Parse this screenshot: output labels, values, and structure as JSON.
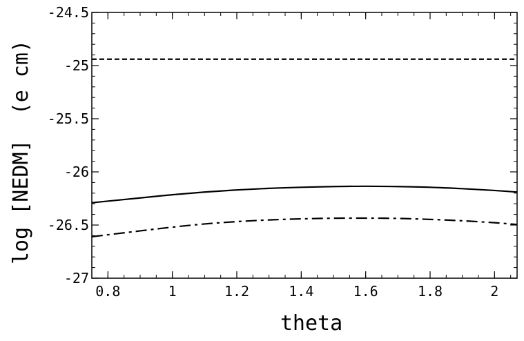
{
  "chart_data": {
    "type": "line",
    "xlabel": "theta",
    "ylabel": "log [NEDM]  (e cm)",
    "xlim": [
      0.75,
      2.07
    ],
    "ylim": [
      -27,
      -24.5
    ],
    "x_ticks": [
      0.8,
      1,
      1.2,
      1.4,
      1.6,
      1.8,
      2
    ],
    "x_tick_labels": [
      "0.8",
      "1",
      "1.2",
      "1.4",
      "1.6",
      "1.8",
      "2"
    ],
    "y_ticks": [
      -27,
      -26.5,
      -26,
      -25.5,
      -25,
      -24.5
    ],
    "y_tick_labels": [
      "-27",
      "-26.5",
      "-26",
      "-25.5",
      "-25",
      "-24.5"
    ],
    "x_minor_step": 0.05,
    "y_minor_step": 0.1,
    "grid": false,
    "series": [
      {
        "style": "dashed",
        "x": [
          0.75,
          1.0,
          1.25,
          1.5,
          1.75,
          2.07
        ],
        "y": [
          -24.94,
          -24.94,
          -24.94,
          -24.94,
          -24.94,
          -24.94
        ]
      },
      {
        "style": "solid",
        "x": [
          0.75,
          0.9,
          1.0,
          1.1,
          1.2,
          1.3,
          1.4,
          1.5,
          1.6,
          1.7,
          1.8,
          1.9,
          2.0,
          2.07
        ],
        "y": [
          -26.29,
          -26.245,
          -26.215,
          -26.19,
          -26.17,
          -26.155,
          -26.145,
          -26.138,
          -26.135,
          -26.138,
          -26.145,
          -26.158,
          -26.175,
          -26.19
        ]
      },
      {
        "style": "dashdot",
        "x": [
          0.75,
          0.9,
          1.0,
          1.1,
          1.2,
          1.3,
          1.4,
          1.5,
          1.6,
          1.7,
          1.8,
          1.9,
          2.0,
          2.07
        ],
        "y": [
          -26.61,
          -26.555,
          -26.52,
          -26.49,
          -26.468,
          -26.452,
          -26.442,
          -26.436,
          -26.435,
          -26.438,
          -26.447,
          -26.46,
          -26.478,
          -26.495
        ]
      }
    ]
  }
}
